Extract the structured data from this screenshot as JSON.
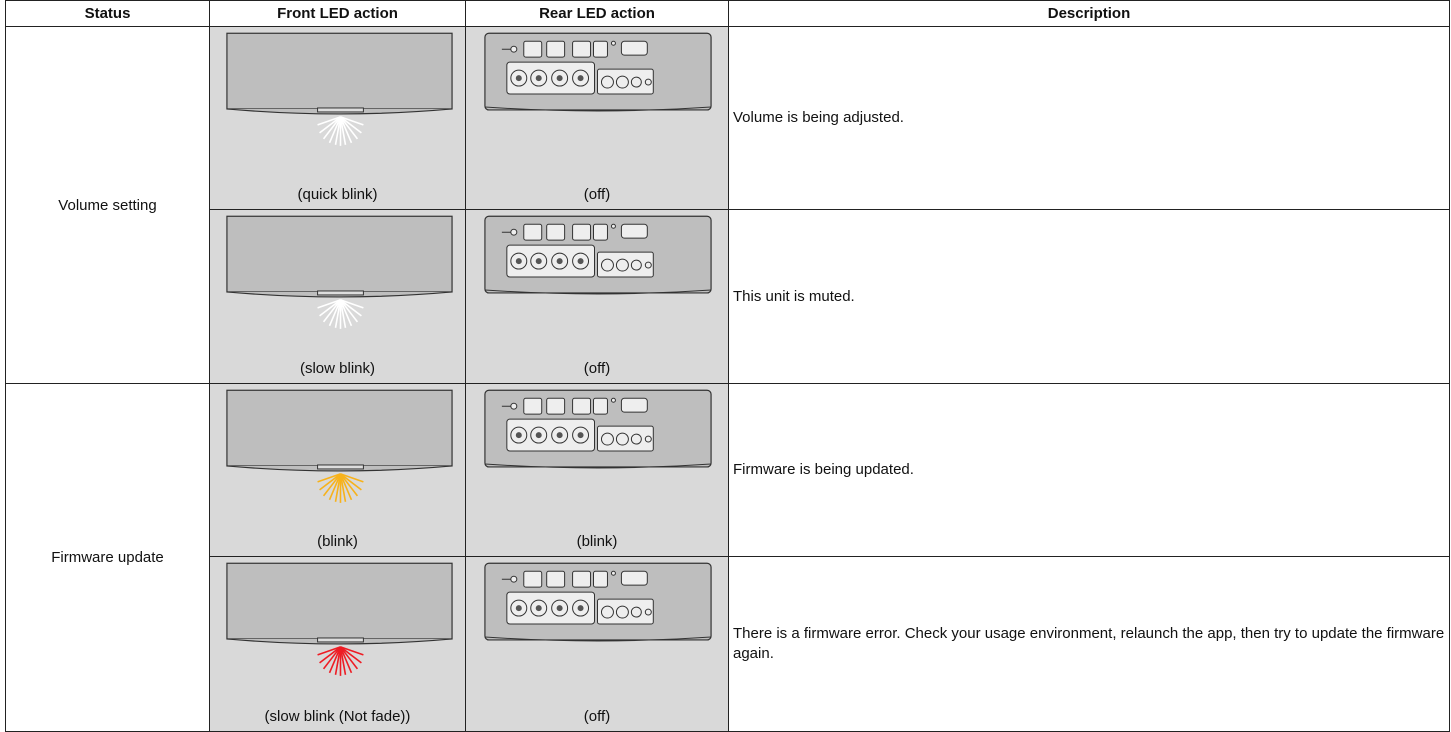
{
  "table": {
    "header": [
      "Status",
      "Front LED action",
      "Rear LED action",
      "Description"
    ],
    "groups": [
      {
        "status": "Volume setting",
        "rows": [
          {
            "front": "(quick blink)",
            "rear": "(off)",
            "description": "Volume is being adjusted."
          },
          {
            "front": "(slow blink)",
            "rear": "(off)",
            "description": "This unit is muted."
          }
        ]
      },
      {
        "status": "Firmware update",
        "rows": [
          {
            "front": "(blink)",
            "rear": "(blink)",
            "description": "Firmware is being updated."
          },
          {
            "front": "(slow blink (Not fade))",
            "rear": "(off)",
            "description": "There is a firmware error. Check your usage environment, relaunch the app, then try to update the firmware again."
          }
        ]
      }
    ]
  }
}
